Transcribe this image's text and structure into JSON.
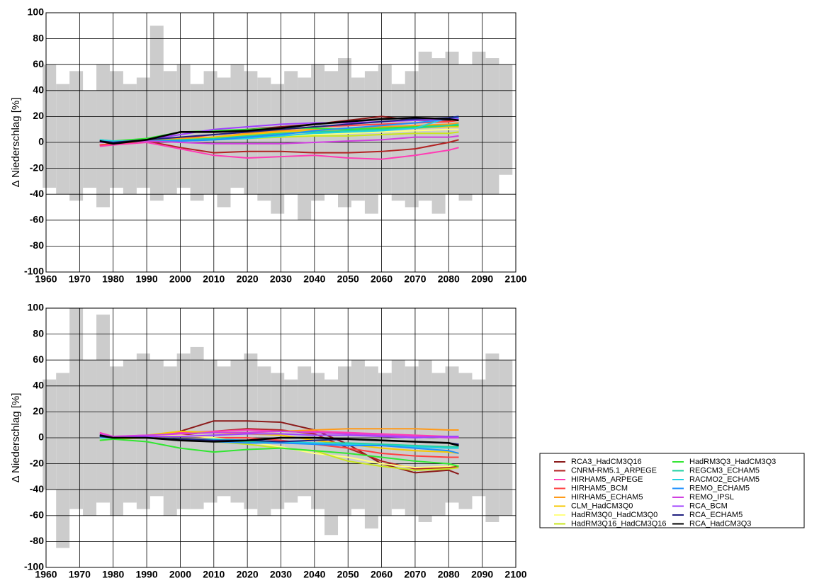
{
  "chart_data": [
    {
      "type": "line",
      "y_label": "Δ Niederschlag [%]",
      "xlim": [
        1960,
        2100
      ],
      "xticks": [
        1960,
        1970,
        1980,
        1990,
        2000,
        2010,
        2020,
        2030,
        2040,
        2050,
        2060,
        2070,
        2080,
        2090,
        2100
      ],
      "ylim": [
        -100,
        100
      ],
      "yticks": [
        -100,
        -80,
        -60,
        -40,
        -20,
        0,
        20,
        40,
        60,
        80,
        100
      ],
      "grid": true,
      "band": {
        "color": "#cccccc",
        "x": [
          1961,
          1965,
          1969,
          1973,
          1977,
          1981,
          1985,
          1989,
          1993,
          1997,
          2001,
          2005,
          2009,
          2013,
          2017,
          2021,
          2025,
          2029,
          2033,
          2037,
          2041,
          2045,
          2049,
          2053,
          2057,
          2061,
          2065,
          2069,
          2073,
          2077,
          2081,
          2085,
          2089,
          2093,
          2097
        ],
        "upper": [
          60,
          45,
          55,
          40,
          60,
          55,
          45,
          50,
          90,
          55,
          60,
          45,
          55,
          50,
          60,
          55,
          50,
          45,
          55,
          50,
          60,
          55,
          65,
          50,
          55,
          60,
          45,
          55,
          70,
          65,
          70,
          60,
          70,
          65,
          60
        ],
        "lower": [
          -35,
          -40,
          -45,
          -35,
          -50,
          -35,
          -40,
          -35,
          -45,
          -40,
          -35,
          -45,
          -40,
          -50,
          -35,
          -40,
          -45,
          -55,
          -40,
          -60,
          -45,
          -40,
          -50,
          -45,
          -55,
          -40,
          -45,
          -50,
          -45,
          -55,
          -40,
          -45,
          -40,
          -40,
          -25
        ]
      },
      "x": [
        1976,
        1980,
        1990,
        2000,
        2010,
        2020,
        2030,
        2040,
        2050,
        2060,
        2070,
        2080,
        2083
      ],
      "series": [
        {
          "color": "#8b1a1a",
          "values": [
            0,
            0,
            2,
            8,
            8,
            10,
            12,
            14,
            17,
            20,
            17,
            17,
            18
          ]
        },
        {
          "color": "#b22222",
          "values": [
            -2,
            -1,
            1,
            -4,
            -8,
            -7,
            -7,
            -8,
            -8,
            -7,
            -5,
            0,
            2
          ]
        },
        {
          "color": "#ff3cb4",
          "values": [
            -3,
            -2,
            0,
            -5,
            -10,
            -12,
            -11,
            -10,
            -12,
            -13,
            -10,
            -6,
            -4
          ]
        },
        {
          "color": "#ff4040",
          "values": [
            -2,
            -1,
            1,
            3,
            6,
            8,
            10,
            12,
            13,
            14,
            15,
            16,
            17
          ]
        },
        {
          "color": "#ff9a1a",
          "values": [
            0,
            0,
            1,
            3,
            4,
            7,
            9,
            10,
            11,
            12,
            13,
            14,
            15
          ]
        },
        {
          "color": "#f5c800",
          "values": [
            0,
            0,
            1,
            2,
            4,
            6,
            8,
            9,
            10,
            10,
            11,
            12,
            12
          ]
        },
        {
          "color": "#ffff80",
          "values": [
            0,
            0,
            1,
            1,
            2,
            3,
            5,
            6,
            7,
            8,
            9,
            10,
            10
          ]
        },
        {
          "color": "#c8e61e",
          "values": [
            0,
            0,
            1,
            1,
            2,
            3,
            4,
            5,
            5,
            6,
            7,
            7,
            8
          ]
        },
        {
          "color": "#32e632",
          "values": [
            2,
            1,
            3,
            8,
            9,
            10,
            11,
            11,
            10,
            11,
            12,
            13,
            13
          ]
        },
        {
          "color": "#20d0a0",
          "values": [
            1,
            0,
            1,
            2,
            3,
            5,
            7,
            8,
            9,
            10,
            11,
            13,
            14
          ]
        },
        {
          "color": "#20d0e0",
          "values": [
            2,
            1,
            1,
            1,
            2,
            3,
            5,
            7,
            8,
            9,
            11,
            19,
            20
          ]
        },
        {
          "color": "#1e90ff",
          "values": [
            1,
            0,
            1,
            1,
            2,
            4,
            6,
            9,
            11,
            13,
            15,
            18,
            19
          ]
        },
        {
          "color": "#d040e0",
          "values": [
            0,
            0,
            1,
            0,
            -1,
            -1,
            -1,
            0,
            1,
            2,
            4,
            4,
            5
          ]
        },
        {
          "color": "#a040ff",
          "values": [
            1,
            0,
            2,
            6,
            10,
            12,
            14,
            15,
            15,
            16,
            17,
            18,
            18
          ]
        },
        {
          "color": "#202080",
          "values": [
            1,
            0,
            2,
            4,
            6,
            8,
            10,
            12,
            14,
            16,
            18,
            19,
            20
          ]
        },
        {
          "color": "#000000",
          "values": [
            1,
            -1,
            2,
            8,
            8,
            9,
            11,
            14,
            16,
            18,
            19,
            18,
            17
          ]
        }
      ]
    },
    {
      "type": "line",
      "y_label": "Δ Niederschlag [%]",
      "legend": "lower right",
      "xlim": [
        1960,
        2100
      ],
      "xticks": [
        1960,
        1970,
        1980,
        1990,
        2000,
        2010,
        2020,
        2030,
        2040,
        2050,
        2060,
        2070,
        2080,
        2090,
        2100
      ],
      "ylim": [
        -100,
        100
      ],
      "yticks": [
        -100,
        -80,
        -60,
        -40,
        -20,
        0,
        20,
        40,
        60,
        80,
        100
      ],
      "grid": true,
      "band": {
        "color": "#cccccc",
        "x": [
          1961,
          1965,
          1969,
          1973,
          1977,
          1981,
          1985,
          1989,
          1993,
          1997,
          2001,
          2005,
          2009,
          2013,
          2017,
          2021,
          2025,
          2029,
          2033,
          2037,
          2041,
          2045,
          2049,
          2053,
          2057,
          2061,
          2065,
          2069,
          2073,
          2077,
          2081,
          2085,
          2089,
          2093,
          2097
        ],
        "upper": [
          45,
          50,
          100,
          60,
          95,
          55,
          60,
          65,
          60,
          55,
          65,
          70,
          60,
          55,
          60,
          65,
          55,
          50,
          45,
          55,
          50,
          45,
          55,
          60,
          55,
          50,
          60,
          55,
          60,
          50,
          55,
          50,
          45,
          65,
          60
        ],
        "lower": [
          -40,
          -85,
          -55,
          -60,
          -50,
          -60,
          -50,
          -55,
          -45,
          -60,
          -55,
          -55,
          -50,
          -45,
          -50,
          -55,
          -60,
          -55,
          -50,
          -45,
          -55,
          -75,
          -60,
          -55,
          -70,
          -60,
          -55,
          -60,
          -65,
          -60,
          -50,
          -55,
          -45,
          -65,
          -60
        ]
      },
      "x": [
        1976,
        1980,
        1990,
        2000,
        2010,
        2020,
        2030,
        2040,
        2050,
        2060,
        2070,
        2080,
        2083
      ],
      "series": [
        {
          "name": "RCA3_HadCM3Q16",
          "color": "#8b1a1a",
          "values": [
            0,
            0,
            1,
            5,
            13,
            13,
            12,
            6,
            -5,
            -20,
            -27,
            -25,
            -28
          ]
        },
        {
          "name": "CNRM-RM5.1_ARPEGE",
          "color": "#b22222",
          "values": [
            0,
            0,
            0,
            2,
            5,
            7,
            6,
            3,
            -8,
            -18,
            -24,
            -23,
            -22
          ]
        },
        {
          "name": "HIRHAM5_ARPEGE",
          "color": "#ff3cb4",
          "values": [
            4,
            1,
            2,
            4,
            5,
            6,
            5,
            5,
            4,
            3,
            2,
            1,
            0
          ]
        },
        {
          "name": "HIRHAM5_BCM",
          "color": "#ff4040",
          "values": [
            0,
            0,
            0,
            -1,
            0,
            0,
            -2,
            -5,
            -8,
            -12,
            -14,
            -15,
            -15
          ]
        },
        {
          "name": "HIRHAM5_ECHAM5",
          "color": "#ff9a1a",
          "values": [
            0,
            0,
            1,
            3,
            4,
            4,
            5,
            6,
            7,
            7,
            7,
            6,
            6
          ]
        },
        {
          "name": "CLM_HadCM3Q0",
          "color": "#f5c800",
          "values": [
            0,
            0,
            2,
            5,
            4,
            3,
            2,
            -2,
            -5,
            -8,
            -10,
            -11,
            -12
          ]
        },
        {
          "name": "HadRM3Q0_HadCM3Q0",
          "color": "#ffff80",
          "values": [
            0,
            0,
            1,
            2,
            0,
            -3,
            -7,
            -12,
            -15,
            -20,
            -23,
            -22,
            -21
          ]
        },
        {
          "name": "HadRM3Q16_HadCM3Q16",
          "color": "#c8e61e",
          "values": [
            -2,
            -1,
            0,
            -1,
            -3,
            -5,
            -8,
            -10,
            -18,
            -22,
            -25,
            -24,
            -23
          ]
        },
        {
          "name": "HadRM3Q3_HadCM3Q3",
          "color": "#32e632",
          "values": [
            -2,
            -1,
            -3,
            -8,
            -11,
            -9,
            -8,
            -10,
            -12,
            -15,
            -18,
            -20,
            -22
          ]
        },
        {
          "name": "REGCM3_ECHAM5",
          "color": "#20d0a0",
          "values": [
            0,
            0,
            0,
            -1,
            -2,
            -3,
            -3,
            -4,
            -4,
            -5,
            -6,
            -7,
            -7
          ]
        },
        {
          "name": "RACMO2_ECHAM5",
          "color": "#20d0e0",
          "values": [
            0,
            0,
            0,
            -1,
            -1,
            -2,
            -3,
            -4,
            -5,
            -6,
            -7,
            -8,
            -8
          ]
        },
        {
          "name": "REMO_ECHAM5",
          "color": "#1e90ff",
          "values": [
            2,
            0,
            0,
            -2,
            -3,
            -4,
            -4,
            -5,
            -6,
            -6,
            -8,
            -10,
            -12
          ]
        },
        {
          "name": "REMO_IPSL",
          "color": "#d040e0",
          "values": [
            3,
            1,
            2,
            3,
            4,
            4,
            5,
            4,
            3,
            2,
            1,
            0,
            0
          ]
        },
        {
          "name": "RCA_BCM",
          "color": "#a040ff",
          "values": [
            1,
            0,
            1,
            1,
            2,
            3,
            3,
            2,
            2,
            1,
            0,
            1,
            1
          ]
        },
        {
          "name": "RCA_ECHAM5",
          "color": "#202080",
          "values": [
            1,
            0,
            0,
            -1,
            -2,
            -2,
            -3,
            -2,
            -1,
            -2,
            -3,
            -4,
            -5
          ]
        },
        {
          "name": "RCA_HadCM3Q3",
          "color": "#000000",
          "values": [
            2,
            0,
            0,
            -2,
            -3,
            -2,
            0,
            0,
            -1,
            -2,
            -3,
            -4,
            -6
          ]
        }
      ]
    }
  ]
}
